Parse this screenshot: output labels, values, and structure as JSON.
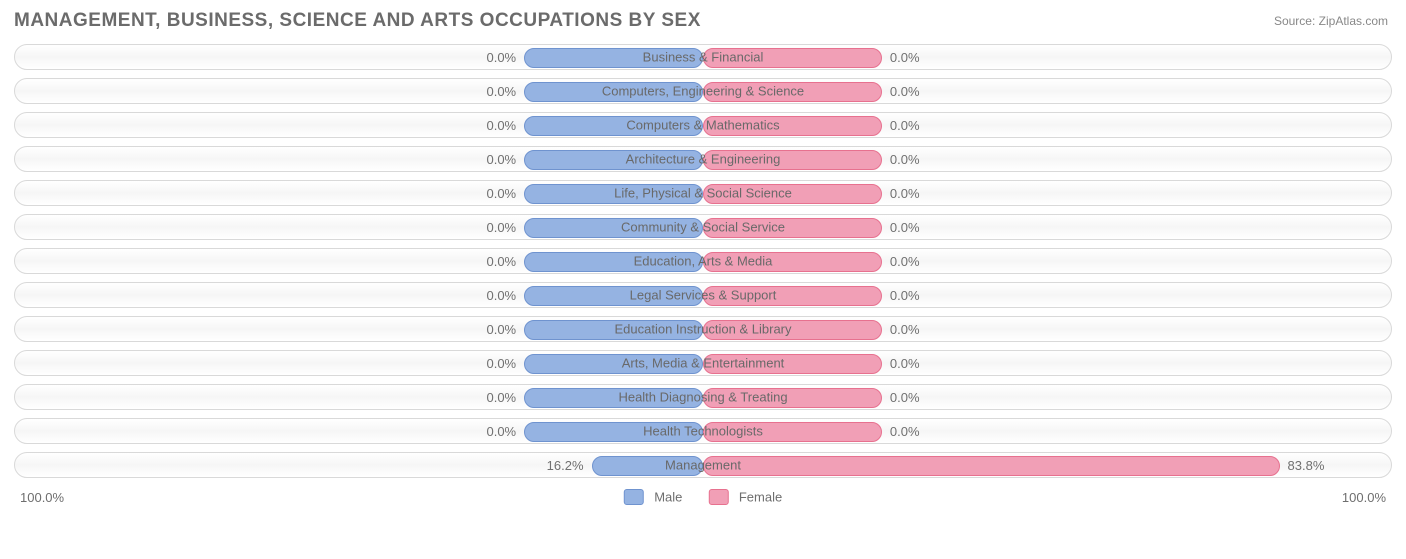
{
  "title": "MANAGEMENT, BUSINESS, SCIENCE AND ARTS OCCUPATIONS BY SEX",
  "source": "Source: ZipAtlas.com",
  "chart": {
    "type": "diverging-bar",
    "male_fill": "#95b3e2",
    "male_stroke": "#6f93cf",
    "female_fill": "#f19fb6",
    "female_stroke": "#e7718f",
    "track_stroke": "#d9d9d9",
    "neutral_bar_pct": 26,
    "label_color": "#696969",
    "value_color": "#707070",
    "axis_left": "100.0%",
    "axis_right": "100.0%",
    "legend": {
      "male": "Male",
      "female": "Female"
    },
    "rows": [
      {
        "label": "Business & Financial",
        "male_pct": 0.0,
        "female_pct": 0.0,
        "male_label": "0.0%",
        "female_label": "0.0%"
      },
      {
        "label": "Computers, Engineering & Science",
        "male_pct": 0.0,
        "female_pct": 0.0,
        "male_label": "0.0%",
        "female_label": "0.0%"
      },
      {
        "label": "Computers & Mathematics",
        "male_pct": 0.0,
        "female_pct": 0.0,
        "male_label": "0.0%",
        "female_label": "0.0%"
      },
      {
        "label": "Architecture & Engineering",
        "male_pct": 0.0,
        "female_pct": 0.0,
        "male_label": "0.0%",
        "female_label": "0.0%"
      },
      {
        "label": "Life, Physical & Social Science",
        "male_pct": 0.0,
        "female_pct": 0.0,
        "male_label": "0.0%",
        "female_label": "0.0%"
      },
      {
        "label": "Community & Social Service",
        "male_pct": 0.0,
        "female_pct": 0.0,
        "male_label": "0.0%",
        "female_label": "0.0%"
      },
      {
        "label": "Education, Arts & Media",
        "male_pct": 0.0,
        "female_pct": 0.0,
        "male_label": "0.0%",
        "female_label": "0.0%"
      },
      {
        "label": "Legal Services & Support",
        "male_pct": 0.0,
        "female_pct": 0.0,
        "male_label": "0.0%",
        "female_label": "0.0%"
      },
      {
        "label": "Education Instruction & Library",
        "male_pct": 0.0,
        "female_pct": 0.0,
        "male_label": "0.0%",
        "female_label": "0.0%"
      },
      {
        "label": "Arts, Media & Entertainment",
        "male_pct": 0.0,
        "female_pct": 0.0,
        "male_label": "0.0%",
        "female_label": "0.0%"
      },
      {
        "label": "Health Diagnosing & Treating",
        "male_pct": 0.0,
        "female_pct": 0.0,
        "male_label": "0.0%",
        "female_label": "0.0%"
      },
      {
        "label": "Health Technologists",
        "male_pct": 0.0,
        "female_pct": 0.0,
        "male_label": "0.0%",
        "female_label": "0.0%"
      },
      {
        "label": "Management",
        "male_pct": 16.2,
        "female_pct": 83.8,
        "male_label": "16.2%",
        "female_label": "83.8%"
      }
    ]
  }
}
